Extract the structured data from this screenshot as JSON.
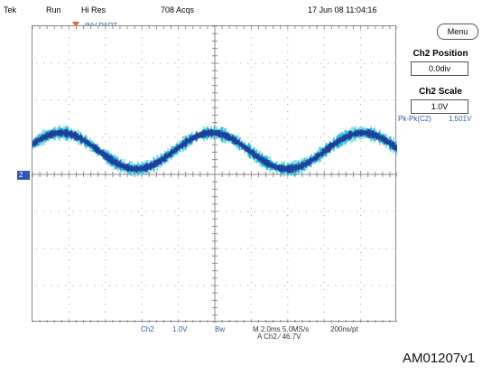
{
  "header": {
    "brand": "Tek",
    "run_state": "Run",
    "acq_mode": "Hi Res",
    "acq_count": "708 Acqs",
    "datetime": "17 Jun 08 11:04:16"
  },
  "screen": {
    "reference_label": "INV-PART",
    "channel_marker": "2"
  },
  "side_menu": {
    "menu_button": "Menu",
    "position_title": "Ch2 Position",
    "position_value": "0.0div",
    "scale_title": "Ch2 Scale",
    "scale_value": "1.0V"
  },
  "measurement": {
    "label": "Pk-Pk(C2)",
    "value": "1.501V"
  },
  "bottom": {
    "channel": "Ch2",
    "volts_per_div": "1.0V",
    "bw_flag": "Bw",
    "timebase": "M 2.0ms 5.0MS/s",
    "trigger": "A  Ch2  ∕  46.7V",
    "record": "200ns/pt"
  },
  "figure_ref": "AM01207v1",
  "colors": {
    "trace_outer": "#2ec0d6",
    "trace_inner": "#1f3f9a",
    "marker": "#3057b8",
    "trigger": "#e8632a"
  }
}
